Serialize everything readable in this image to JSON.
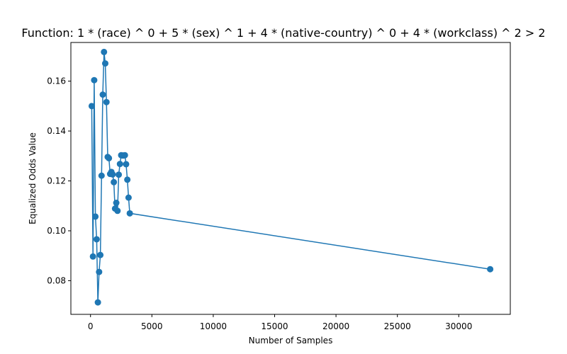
{
  "chart_data": {
    "type": "line",
    "title": "Function:  1 * (race) ^ 0 +  5 * (sex) ^ 1 +  4 * (native-country) ^ 0 +  4 * (workclass) ^ 2   >  2",
    "xlabel": "Number of Samples",
    "ylabel": "Equalized Odds Value",
    "xlim": [
      -1600,
      34200
    ],
    "ylim": [
      0.0665,
      0.1755
    ],
    "xticks": [
      0,
      5000,
      10000,
      15000,
      20000,
      25000,
      30000
    ],
    "yticks": [
      0.08,
      0.1,
      0.12,
      0.14,
      0.16
    ],
    "ytick_labels": [
      "0.08",
      "0.10",
      "0.12",
      "0.14",
      "0.16"
    ],
    "grid": false,
    "markers": true,
    "color": "#1f77b4",
    "series": [
      {
        "x": [
          100,
          200,
          300,
          400,
          500,
          600,
          700,
          800,
          900,
          1000,
          1100,
          1200,
          1300,
          1400,
          1500,
          1600,
          1700,
          1800,
          1900,
          2000,
          2100,
          2200,
          2300,
          2400,
          2500,
          2600,
          2700,
          2800,
          2900,
          3000,
          3100,
          3200,
          32561
        ],
        "values": [
          0.15,
          0.0897,
          0.1604,
          0.1057,
          0.0966,
          0.0713,
          0.0835,
          0.0903,
          0.1221,
          0.1546,
          0.1717,
          0.1671,
          0.1516,
          0.1296,
          0.1291,
          0.1228,
          0.1236,
          0.1226,
          0.1195,
          0.1089,
          0.1112,
          0.108,
          0.1225,
          0.1268,
          0.1303,
          0.1302,
          0.1302,
          0.1303,
          0.1267,
          0.1205,
          0.1133,
          0.107,
          0.0846
        ]
      }
    ]
  }
}
